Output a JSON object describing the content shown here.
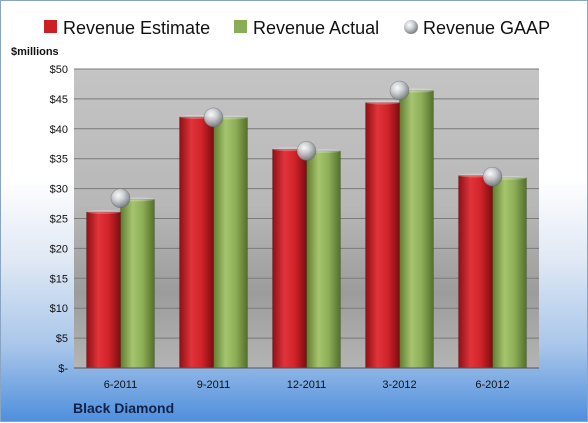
{
  "chart_data": {
    "type": "bar",
    "unit_label": "$millions",
    "company": "Black Diamond",
    "categories": [
      "6-2011",
      "9-2011",
      "12-2011",
      "3-2012",
      "6-2012"
    ],
    "series": [
      {
        "name": "Revenue Estimate",
        "kind": "bar",
        "color": "#cc1f25",
        "values": [
          26.1,
          42.0,
          36.6,
          44.4,
          32.2
        ]
      },
      {
        "name": "Revenue Actual",
        "kind": "bar",
        "color": "#8aac55",
        "values": [
          28.2,
          41.9,
          36.3,
          46.4,
          31.8
        ]
      },
      {
        "name": "Revenue GAAP",
        "kind": "marker",
        "color": "#b9bcc2",
        "values": [
          28.4,
          41.9,
          36.3,
          46.4,
          32.0
        ]
      }
    ],
    "yticks": [
      "$-",
      "$5",
      "$10",
      "$15",
      "$20",
      "$25",
      "$30",
      "$35",
      "$40",
      "$45",
      "$50"
    ],
    "ylim": [
      0,
      50
    ],
    "grid": true,
    "legend_position": "top"
  }
}
